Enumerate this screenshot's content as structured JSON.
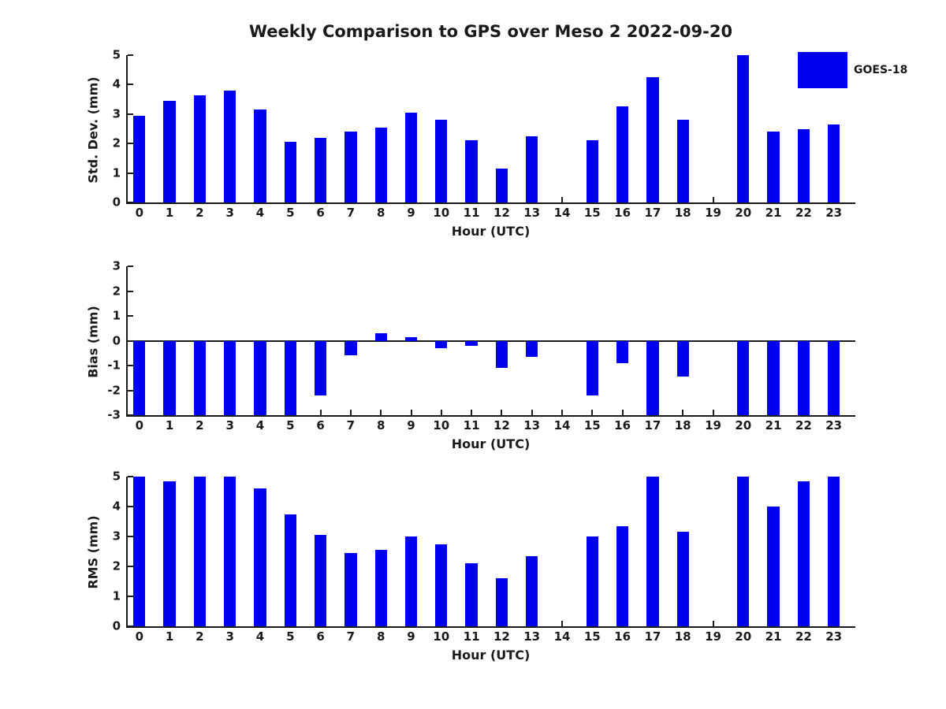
{
  "title": "Weekly Comparison to GPS over Meso 2 2022-09-20",
  "legend": {
    "label": "GOES-18",
    "color": "#0000EE",
    "position": "top-right"
  },
  "chart_data": [
    {
      "type": "bar",
      "panel": "std-dev",
      "ylabel": "Std. Dev. (mm)",
      "xlabel": "Hour (UTC)",
      "ylim": [
        0,
        5
      ],
      "yticks": [
        0,
        1,
        2,
        3,
        4,
        5
      ],
      "grid": false,
      "categories": [
        0,
        1,
        2,
        3,
        4,
        5,
        6,
        7,
        8,
        9,
        10,
        11,
        12,
        13,
        14,
        15,
        16,
        17,
        18,
        19,
        20,
        21,
        22,
        23
      ],
      "series": [
        {
          "name": "GOES-18",
          "color": "#0000EE",
          "values": [
            2.95,
            3.45,
            3.65,
            3.8,
            3.15,
            2.05,
            2.2,
            2.4,
            2.55,
            3.05,
            2.8,
            2.1,
            1.15,
            2.25,
            null,
            2.1,
            3.25,
            4.25,
            2.8,
            null,
            5.0,
            2.4,
            2.5,
            2.65
          ]
        }
      ]
    },
    {
      "type": "bar",
      "panel": "bias",
      "ylabel": "Bias (mm)",
      "xlabel": "Hour (UTC)",
      "ylim": [
        -3,
        3
      ],
      "yticks": [
        -3,
        -2,
        -1,
        0,
        1,
        2,
        3
      ],
      "grid": false,
      "categories": [
        0,
        1,
        2,
        3,
        4,
        5,
        6,
        7,
        8,
        9,
        10,
        11,
        12,
        13,
        14,
        15,
        16,
        17,
        18,
        19,
        20,
        21,
        22,
        23
      ],
      "series": [
        {
          "name": "GOES-18",
          "color": "#0000EE",
          "values": [
            -3,
            -3,
            -3,
            -3,
            -3,
            -3,
            -2.2,
            -0.6,
            0.3,
            0.15,
            -0.3,
            -0.2,
            -1.1,
            -0.65,
            null,
            -2.2,
            -0.9,
            -3,
            -1.45,
            null,
            -3,
            -3,
            -3,
            -3
          ]
        }
      ]
    },
    {
      "type": "bar",
      "panel": "rms",
      "ylabel": "RMS (mm)",
      "xlabel": "Hour (UTC)",
      "ylim": [
        0,
        5
      ],
      "yticks": [
        0,
        1,
        2,
        3,
        4,
        5
      ],
      "grid": false,
      "categories": [
        0,
        1,
        2,
        3,
        4,
        5,
        6,
        7,
        8,
        9,
        10,
        11,
        12,
        13,
        14,
        15,
        16,
        17,
        18,
        19,
        20,
        21,
        22,
        23
      ],
      "series": [
        {
          "name": "GOES-18",
          "color": "#0000EE",
          "values": [
            5.0,
            4.85,
            5.0,
            5.0,
            4.6,
            3.75,
            3.05,
            2.45,
            2.55,
            3.0,
            2.75,
            2.1,
            1.6,
            2.35,
            null,
            3.0,
            3.35,
            5.0,
            3.15,
            null,
            5.0,
            4.0,
            4.85,
            5.0
          ]
        }
      ]
    }
  ]
}
